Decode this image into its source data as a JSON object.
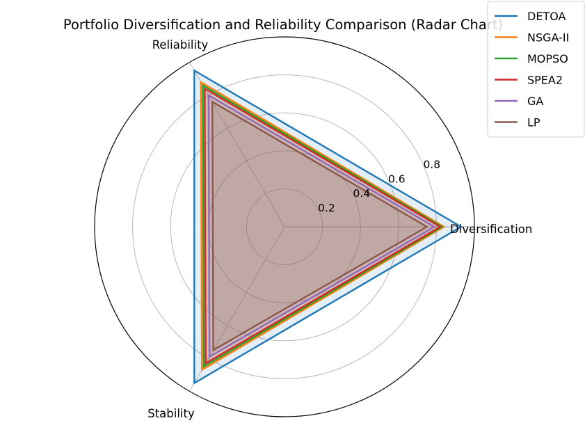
{
  "chart_data": {
    "type": "radar",
    "title": "Portfolio Diversification and Reliability Comparison (Radar Chart)",
    "axes": [
      "Diversification",
      "Reliability",
      "Stability"
    ],
    "rlim": [
      0,
      1
    ],
    "radial_ticks": [
      0.2,
      0.4,
      0.6,
      0.8
    ],
    "grid": true,
    "legend": "top-right",
    "series": [
      {
        "name": "DETOA",
        "color": "#1f77b4",
        "values": [
          0.93,
          0.95,
          0.95
        ]
      },
      {
        "name": "NSGA-II",
        "color": "#ff7f0e",
        "values": [
          0.84,
          0.88,
          0.87
        ]
      },
      {
        "name": "MOPSO",
        "color": "#2ca02c",
        "values": [
          0.83,
          0.86,
          0.85
        ]
      },
      {
        "name": "SPEA2",
        "color": "#d62728",
        "values": [
          0.82,
          0.84,
          0.83
        ]
      },
      {
        "name": "GA",
        "color": "#9467bd",
        "values": [
          0.79,
          0.8,
          0.79
        ]
      },
      {
        "name": "LP",
        "color": "#8c564b",
        "values": [
          0.75,
          0.76,
          0.75
        ]
      }
    ]
  }
}
